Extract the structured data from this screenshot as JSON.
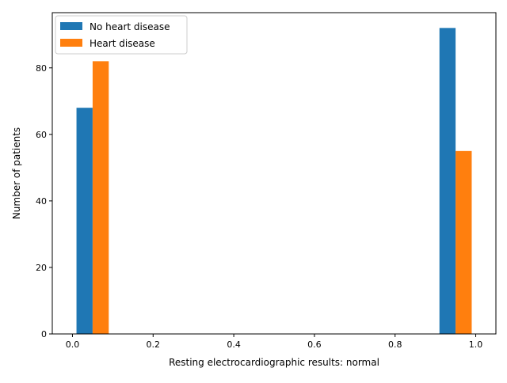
{
  "chart_data": {
    "type": "bar",
    "title": "",
    "xlabel": "Resting electrocardiographic results: normal",
    "ylabel": "Number of patients",
    "xlim": [
      -0.05,
      1.05
    ],
    "ylim": [
      0,
      96.6
    ],
    "x_ticks": [
      0.0,
      0.2,
      0.4,
      0.6,
      0.8,
      1.0
    ],
    "x_tick_labels": [
      "0.0",
      "0.2",
      "0.4",
      "0.6",
      "0.8",
      "1.0"
    ],
    "y_ticks": [
      0,
      20,
      40,
      60,
      80
    ],
    "y_tick_labels": [
      "0",
      "20",
      "40",
      "60",
      "80"
    ],
    "bins": [
      [
        0.0,
        0.1
      ],
      [
        0.9,
        1.0
      ]
    ],
    "series": [
      {
        "name": "No heart disease",
        "color": "#1f77b4",
        "values": [
          68,
          92
        ]
      },
      {
        "name": "Heart disease",
        "color": "#ff7f0e",
        "values": [
          82,
          55
        ]
      }
    ],
    "legend": {
      "position": "top-left"
    },
    "grid": false
  }
}
